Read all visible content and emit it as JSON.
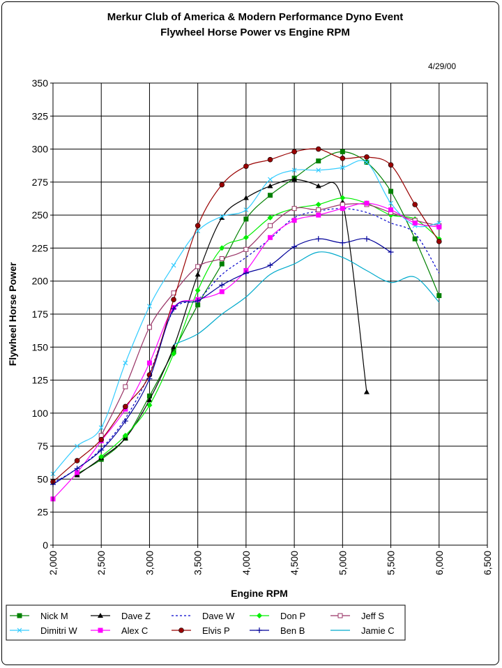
{
  "chart_data": {
    "type": "line",
    "title": "Merkur Club of America & Modern Performance Dyno Event",
    "subtitle": "Flywheel Horse Power vs Engine RPM",
    "date": "4/29/00",
    "xlabel": "Engine RPM",
    "ylabel": "Flywheel Horse Power",
    "xlim": [
      2000,
      6500
    ],
    "ylim": [
      0,
      350
    ],
    "x_ticks": [
      2000,
      2500,
      3000,
      3500,
      4000,
      4500,
      5000,
      5500,
      6000,
      6500
    ],
    "x_tick_labels": [
      "2,000",
      "2,500",
      "3,000",
      "3,500",
      "4,000",
      "4,500",
      "5,000",
      "5,500",
      "6,000",
      "6,500"
    ],
    "y_ticks": [
      0,
      25,
      50,
      75,
      100,
      125,
      150,
      175,
      200,
      225,
      250,
      275,
      300,
      325,
      350
    ],
    "grid": true,
    "legend_position": "bottom",
    "series": [
      {
        "name": "Nick M",
        "color": "#008000",
        "dash": "",
        "marker": "square-filled",
        "x": [
          2250,
          2500,
          2750,
          3000,
          3250,
          3500,
          3750,
          4000,
          4250,
          4500,
          4750,
          5000,
          5250,
          5500,
          5750,
          6000
        ],
        "y": [
          54,
          65,
          81,
          113,
          147,
          182,
          213,
          247,
          265,
          278,
          291,
          298,
          290,
          268,
          232,
          189
        ]
      },
      {
        "name": "Dave Z",
        "color": "#000000",
        "dash": "",
        "marker": "triangle",
        "x": [
          2250,
          2500,
          2750,
          3000,
          3250,
          3500,
          3750,
          4000,
          4250,
          4500,
          4750,
          5000,
          5250
        ],
        "y": [
          53,
          66,
          81,
          110,
          150,
          205,
          248,
          263,
          272,
          277,
          272,
          260,
          116
        ]
      },
      {
        "name": "Dave W",
        "color": "#0000cc",
        "dash": "3,3",
        "marker": "none",
        "x": [
          2000,
          2250,
          2500,
          2750,
          3000,
          3250,
          3500,
          3750,
          4000,
          4250,
          4500,
          4750,
          5000,
          5250,
          5500,
          5750,
          6000
        ],
        "y": [
          47,
          58,
          73,
          96,
          130,
          178,
          186,
          205,
          218,
          232,
          248,
          253,
          255,
          252,
          244,
          236,
          206
        ]
      },
      {
        "name": "Don P",
        "color": "#00ee00",
        "dash": "",
        "marker": "diamond",
        "x": [
          2500,
          2750,
          3000,
          3250,
          3500,
          3750,
          4000,
          4250,
          4500,
          4750,
          5000,
          5250,
          5500,
          5750,
          6000
        ],
        "y": [
          67,
          83,
          106,
          145,
          193,
          225,
          233,
          248,
          255,
          258,
          263,
          259,
          250,
          247,
          232
        ]
      },
      {
        "name": "Jeff S",
        "color": "#993366",
        "dash": "",
        "marker": "square-open",
        "x": [
          2500,
          2750,
          3000,
          3250,
          3500,
          3750,
          4000,
          4250,
          4500,
          4750,
          5000,
          5250,
          5500,
          5750,
          6000
        ],
        "y": [
          83,
          120,
          165,
          191,
          211,
          217,
          224,
          242,
          255,
          254,
          258,
          258,
          252,
          246,
          242
        ]
      },
      {
        "name": "Dimitri W",
        "color": "#33ccff",
        "dash": "",
        "marker": "x",
        "x": [
          2000,
          2250,
          2500,
          2750,
          3000,
          3250,
          3500,
          3750,
          4000,
          4250,
          4500,
          4750,
          5000,
          5250,
          5500,
          5750,
          6000
        ],
        "y": [
          54,
          75,
          89,
          138,
          181,
          212,
          238,
          249,
          254,
          277,
          284,
          284,
          286,
          290,
          259,
          242,
          244
        ]
      },
      {
        "name": "Alex C",
        "color": "#ff00ff",
        "dash": "",
        "marker": "square-filled",
        "x": [
          2000,
          2250,
          2500,
          2750,
          3000,
          3250,
          3500,
          3750,
          4000,
          4250,
          4500,
          4750,
          5000,
          5250,
          5500,
          5750,
          6000
        ],
        "y": [
          35,
          55,
          79,
          103,
          138,
          180,
          186,
          192,
          208,
          233,
          246,
          250,
          255,
          259,
          254,
          244,
          241
        ]
      },
      {
        "name": "Elvis P",
        "color": "#990000",
        "dash": "",
        "marker": "circle",
        "x": [
          2000,
          2250,
          2500,
          2750,
          3000,
          3250,
          3500,
          3750,
          4000,
          4250,
          4500,
          4750,
          5000,
          5250,
          5500,
          5750,
          6000
        ],
        "y": [
          48,
          64,
          80,
          105,
          129,
          186,
          242,
          273,
          287,
          292,
          298,
          300,
          293,
          294,
          288,
          258,
          230
        ]
      },
      {
        "name": "Ben B",
        "color": "#000099",
        "dash": "",
        "marker": "plus",
        "x": [
          2000,
          2250,
          2500,
          2750,
          3000,
          3250,
          3500,
          3750,
          4000,
          4250,
          4500,
          4750,
          5000,
          5250,
          5500
        ],
        "y": [
          46,
          58,
          72,
          94,
          126,
          179,
          185,
          197,
          206,
          212,
          226,
          232,
          229,
          232,
          222
        ]
      },
      {
        "name": "Jamie C",
        "color": "#00aacc",
        "dash": "",
        "marker": "none",
        "x": [
          3250,
          3500,
          3750,
          4000,
          4250,
          4500,
          4750,
          5000,
          5250,
          5500,
          5750,
          6000
        ],
        "y": [
          152,
          160,
          175,
          188,
          205,
          213,
          222,
          218,
          208,
          199,
          203,
          184
        ]
      }
    ]
  }
}
